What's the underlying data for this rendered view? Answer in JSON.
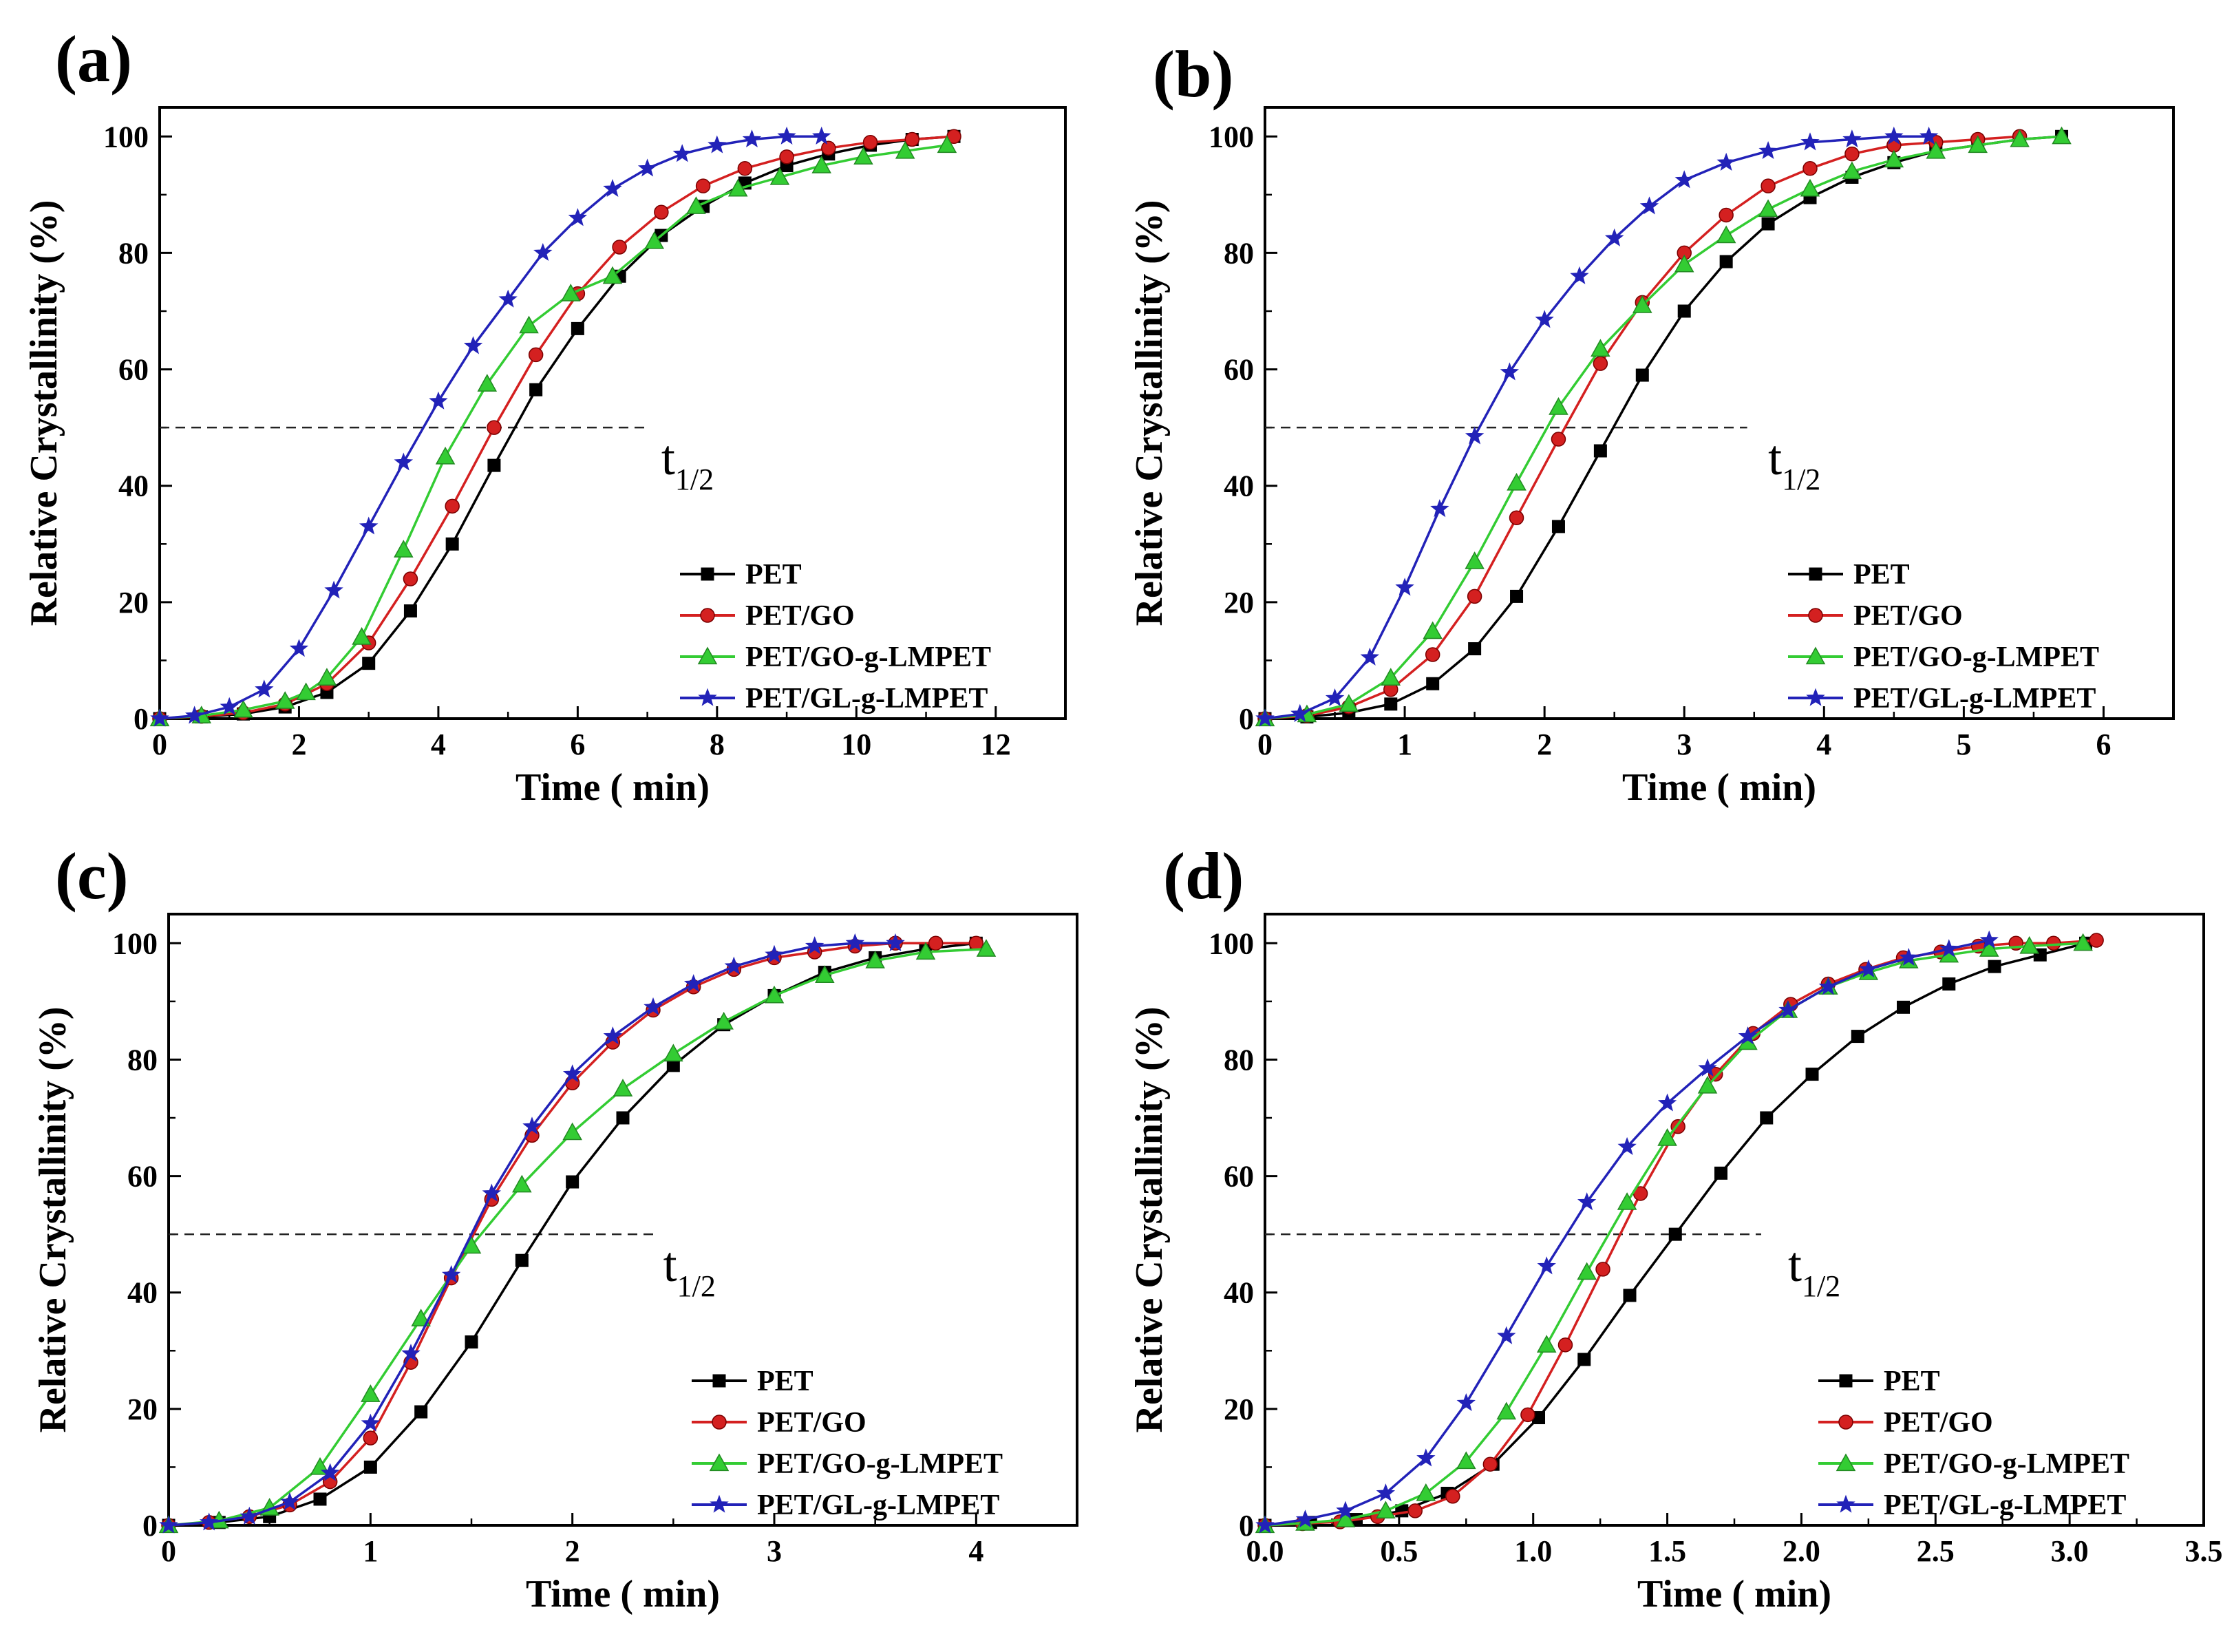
{
  "figure": {
    "series_names": [
      "PET",
      "PET/GO",
      "PET/GO-g-LMPET",
      "PET/GL-g-LMPET"
    ],
    "series_colors": [
      "#000000",
      "#d42020",
      "#33cc33",
      "#2222b8"
    ],
    "series_markers": [
      "square",
      "circle",
      "triangle",
      "star"
    ]
  },
  "chart_data": [
    {
      "type": "line",
      "panel_label": "(a)",
      "xlabel": "Time ( min)",
      "ylabel": "Relative Crystallinity (%)",
      "xlim": [
        0,
        13
      ],
      "ylim": [
        0,
        105
      ],
      "xticks": [
        0,
        2,
        4,
        6,
        8,
        10,
        12
      ],
      "xtick_labels": [
        "0",
        "2",
        "4",
        "6",
        "8",
        "10",
        "12"
      ],
      "yticks": [
        0,
        20,
        40,
        60,
        80,
        100
      ],
      "ytick_labels": [
        "0",
        "20",
        "40",
        "60",
        "80",
        "100"
      ],
      "annotation": {
        "text": "t",
        "subscript": "1/2",
        "y": 50,
        "x_end": 7.0,
        "text_x": 7.2,
        "text_y": 42
      },
      "legend": "lower-right",
      "series": [
        {
          "name": "PET",
          "x": [
            0,
            0.6,
            1.2,
            1.8,
            2.4,
            3.0,
            3.6,
            4.2,
            4.8,
            5.4,
            6.0,
            6.6,
            7.2,
            7.8,
            8.4,
            9.0,
            9.6,
            10.2,
            10.8,
            11.4
          ],
          "y": [
            0,
            0.3,
            0.8,
            2,
            4.5,
            9.5,
            18.5,
            30,
            43.5,
            56.5,
            67,
            76,
            83,
            88,
            92,
            95,
            97,
            98.5,
            99.5,
            100
          ]
        },
        {
          "name": "PET/GO",
          "x": [
            0,
            0.6,
            1.2,
            1.8,
            2.4,
            3.0,
            3.6,
            4.2,
            4.8,
            5.4,
            6.0,
            6.6,
            7.2,
            7.8,
            8.4,
            9.0,
            9.6,
            10.2,
            10.8,
            11.4
          ],
          "y": [
            0,
            0.4,
            1,
            2.5,
            6,
            13,
            24,
            36.5,
            50,
            62.5,
            73,
            81,
            87,
            91.5,
            94.5,
            96.5,
            98,
            99,
            99.5,
            100
          ]
        },
        {
          "name": "PET/GO-g-LMPET",
          "x": [
            0,
            0.6,
            1.2,
            1.8,
            2.1,
            2.4,
            2.9,
            3.5,
            4.1,
            4.7,
            5.3,
            5.9,
            6.5,
            7.1,
            7.7,
            8.3,
            8.9,
            9.5,
            10.1,
            10.7,
            11.3
          ],
          "y": [
            0,
            0.5,
            1.5,
            3,
            4.5,
            7,
            14,
            29,
            45,
            57.5,
            67.5,
            73,
            76,
            82,
            88,
            91,
            93,
            95,
            96.5,
            97.5,
            98.5
          ]
        },
        {
          "name": "PET/GL-g-LMPET",
          "x": [
            0,
            0.5,
            1.0,
            1.5,
            2.0,
            2.5,
            3.0,
            3.5,
            4.0,
            4.5,
            5.0,
            5.5,
            6.0,
            6.5,
            7.0,
            7.5,
            8.0,
            8.5,
            9.0,
            9.5
          ],
          "y": [
            0,
            0.5,
            2,
            5,
            12,
            22,
            33,
            44,
            54.5,
            64,
            72,
            80,
            86,
            91,
            94.5,
            97,
            98.5,
            99.5,
            100,
            100
          ]
        }
      ]
    },
    {
      "type": "line",
      "panel_label": "(b)",
      "xlabel": "Time ( min)",
      "ylabel": "Relative Crystallinity (%)",
      "xlim": [
        0,
        6.5
      ],
      "ylim": [
        0,
        105
      ],
      "xticks": [
        0,
        1,
        2,
        3,
        4,
        5,
        6
      ],
      "xtick_labels": [
        "0",
        "1",
        "2",
        "3",
        "4",
        "5",
        "6"
      ],
      "yticks": [
        0,
        20,
        40,
        60,
        80,
        100
      ],
      "ytick_labels": [
        "0",
        "20",
        "40",
        "60",
        "80",
        "100"
      ],
      "annotation": {
        "text": "t",
        "subscript": "1/2",
        "y": 50,
        "x_end": 3.45,
        "text_x": 3.6,
        "text_y": 42
      },
      "legend": "lower-right",
      "series": [
        {
          "name": "PET",
          "x": [
            0,
            0.3,
            0.6,
            0.9,
            1.2,
            1.5,
            1.8,
            2.1,
            2.4,
            2.7,
            3.0,
            3.3,
            3.6,
            3.9,
            4.2,
            4.5,
            4.8,
            5.1,
            5.4,
            5.7
          ],
          "y": [
            0,
            0.3,
            1,
            2.5,
            6,
            12,
            21,
            33,
            46,
            59,
            70,
            78.5,
            85,
            89.5,
            93,
            95.5,
            97.5,
            98.5,
            99.5,
            100
          ]
        },
        {
          "name": "PET/GO",
          "x": [
            0,
            0.3,
            0.6,
            0.9,
            1.2,
            1.5,
            1.8,
            2.1,
            2.4,
            2.7,
            3.0,
            3.3,
            3.6,
            3.9,
            4.2,
            4.5,
            4.8,
            5.1,
            5.4
          ],
          "y": [
            0,
            0.5,
            2,
            5,
            11,
            21,
            34.5,
            48,
            61,
            71.5,
            80,
            86.5,
            91.5,
            94.5,
            97,
            98.5,
            99,
            99.5,
            100
          ]
        },
        {
          "name": "PET/GO-g-LMPET",
          "x": [
            0,
            0.3,
            0.6,
            0.9,
            1.2,
            1.5,
            1.8,
            2.1,
            2.4,
            2.7,
            3.0,
            3.3,
            3.6,
            3.9,
            4.2,
            4.5,
            4.8,
            5.1,
            5.4,
            5.7
          ],
          "y": [
            0,
            0.7,
            2.5,
            7,
            15,
            27,
            40.5,
            53.5,
            63.5,
            71,
            78,
            83,
            87.5,
            91,
            94,
            96,
            97.5,
            98.5,
            99.5,
            100
          ]
        },
        {
          "name": "PET/GL-g-LMPET",
          "x": [
            0,
            0.25,
            0.5,
            0.75,
            1.0,
            1.25,
            1.5,
            1.75,
            2.0,
            2.25,
            2.5,
            2.75,
            3.0,
            3.3,
            3.6,
            3.9,
            4.2,
            4.5,
            4.75
          ],
          "y": [
            0,
            0.8,
            3.5,
            10.5,
            22.5,
            36,
            48.5,
            59.5,
            68.5,
            76,
            82.5,
            88,
            92.5,
            95.5,
            97.5,
            99,
            99.5,
            100,
            100
          ]
        }
      ]
    },
    {
      "type": "line",
      "panel_label": "(c)",
      "xlabel": "Time ( min)",
      "ylabel": "Relative Crystallinity (%)",
      "xlim": [
        0,
        4.5
      ],
      "ylim": [
        0,
        105
      ],
      "xticks": [
        0,
        1,
        2,
        3,
        4
      ],
      "xtick_labels": [
        "0",
        "1",
        "2",
        "3",
        "4"
      ],
      "yticks": [
        0,
        20,
        40,
        60,
        80,
        100
      ],
      "ytick_labels": [
        "0",
        "20",
        "40",
        "60",
        "80",
        "100"
      ],
      "annotation": {
        "text": "t",
        "subscript": "1/2",
        "y": 50,
        "x_end": 2.4,
        "text_x": 2.45,
        "text_y": 42
      },
      "legend": "lower-right",
      "series": [
        {
          "name": "PET",
          "x": [
            0,
            0.25,
            0.5,
            0.75,
            1.0,
            1.25,
            1.5,
            1.75,
            2.0,
            2.25,
            2.5,
            2.75,
            3.0,
            3.25,
            3.5,
            3.75,
            4.0
          ],
          "y": [
            0,
            0.5,
            1.5,
            4.5,
            10,
            19.5,
            31.5,
            45.5,
            59,
            70,
            79,
            86,
            91,
            95,
            97.5,
            99,
            100
          ]
        },
        {
          "name": "PET/GO",
          "x": [
            0,
            0.2,
            0.4,
            0.6,
            0.8,
            1.0,
            1.2,
            1.4,
            1.6,
            1.8,
            2.0,
            2.2,
            2.4,
            2.6,
            2.8,
            3.0,
            3.2,
            3.4,
            3.6,
            3.8,
            4.0
          ],
          "y": [
            0,
            0.5,
            1.5,
            3.5,
            7.5,
            15,
            28,
            42.5,
            56,
            67,
            76,
            83,
            88.5,
            92.5,
            95.5,
            97.5,
            98.5,
            99.5,
            100,
            100,
            100
          ]
        },
        {
          "name": "PET/GO-g-LMPET",
          "x": [
            0,
            0.25,
            0.5,
            0.75,
            1.0,
            1.25,
            1.5,
            1.75,
            2.0,
            2.25,
            2.5,
            2.75,
            3.0,
            3.25,
            3.5,
            3.75,
            4.05
          ],
          "y": [
            0,
            0.8,
            3,
            10,
            22.5,
            35.5,
            48,
            58.5,
            67.5,
            75,
            81,
            86.5,
            91,
            94.5,
            97,
            98.5,
            99
          ]
        },
        {
          "name": "PET/GL-g-LMPET",
          "x": [
            0,
            0.2,
            0.4,
            0.6,
            0.8,
            1.0,
            1.2,
            1.4,
            1.6,
            1.8,
            2.0,
            2.2,
            2.4,
            2.6,
            2.8,
            3.0,
            3.2,
            3.4,
            3.6
          ],
          "y": [
            0,
            0.5,
            1.5,
            4,
            9,
            17.5,
            29.5,
            43,
            57,
            68.5,
            77.5,
            84,
            89,
            93,
            96,
            98,
            99.5,
            100,
            100
          ]
        }
      ]
    },
    {
      "type": "line",
      "panel_label": "(d)",
      "xlabel": "Time ( min)",
      "ylabel": "Relative Crystallinity (%)",
      "xlim": [
        0,
        3.5
      ],
      "ylim": [
        0,
        105
      ],
      "xticks": [
        0,
        0.5,
        1.0,
        1.5,
        2.0,
        2.5,
        3.0,
        3.5
      ],
      "xtick_labels": [
        "0.0",
        "0.5",
        "1.0",
        "1.5",
        "2.0",
        "2.5",
        "3.0",
        "3.5"
      ],
      "yticks": [
        0,
        20,
        40,
        60,
        80,
        100
      ],
      "ytick_labels": [
        "0",
        "20",
        "40",
        "60",
        "80",
        "100"
      ],
      "annotation": {
        "text": "t",
        "subscript": "1/2",
        "y": 50,
        "x_end": 1.85,
        "text_x": 1.95,
        "text_y": 42
      },
      "legend": "lower-right",
      "series": [
        {
          "name": "PET",
          "x": [
            0,
            0.17,
            0.34,
            0.51,
            0.68,
            0.85,
            1.02,
            1.19,
            1.36,
            1.53,
            1.7,
            1.87,
            2.04,
            2.21,
            2.38,
            2.55,
            2.72,
            2.89,
            3.06
          ],
          "y": [
            0,
            0.5,
            1,
            2.5,
            5.5,
            10.5,
            18.5,
            28.5,
            39.5,
            50,
            60.5,
            70,
            77.5,
            84,
            89,
            93,
            96,
            98,
            100
          ]
        },
        {
          "name": "PET/GO",
          "x": [
            0,
            0.14,
            0.28,
            0.42,
            0.56,
            0.7,
            0.84,
            0.98,
            1.12,
            1.26,
            1.4,
            1.54,
            1.68,
            1.82,
            1.96,
            2.1,
            2.24,
            2.38,
            2.52,
            2.66,
            2.8,
            2.94,
            3.1
          ],
          "y": [
            0,
            0.3,
            0.6,
            1.5,
            2.5,
            5,
            10.5,
            19,
            31,
            44,
            57,
            68.5,
            77.5,
            84.5,
            89.5,
            93,
            95.5,
            97.5,
            98.5,
            99.5,
            100,
            100,
            100.5
          ]
        },
        {
          "name": "PET/GO-g-LMPET",
          "x": [
            0,
            0.15,
            0.3,
            0.45,
            0.6,
            0.75,
            0.9,
            1.05,
            1.2,
            1.35,
            1.5,
            1.65,
            1.8,
            1.95,
            2.1,
            2.25,
            2.4,
            2.55,
            2.7,
            2.85,
            3.05
          ],
          "y": [
            0,
            0.4,
            1,
            2.5,
            5.5,
            11,
            19.5,
            31,
            43.5,
            55.5,
            66.5,
            75.5,
            83,
            88.5,
            92.5,
            95,
            97,
            98,
            99,
            99.5,
            100
          ]
        },
        {
          "name": "PET/GL-g-LMPET",
          "x": [
            0,
            0.15,
            0.3,
            0.45,
            0.6,
            0.75,
            0.9,
            1.05,
            1.2,
            1.35,
            1.5,
            1.65,
            1.8,
            1.95,
            2.1,
            2.25,
            2.4,
            2.55,
            2.7
          ],
          "y": [
            0,
            1,
            2.5,
            5.5,
            11.5,
            21,
            32.5,
            44.5,
            55.5,
            65,
            72.5,
            78.5,
            84,
            88.5,
            92.5,
            95.5,
            97.5,
            99,
            100.5
          ]
        }
      ]
    }
  ]
}
